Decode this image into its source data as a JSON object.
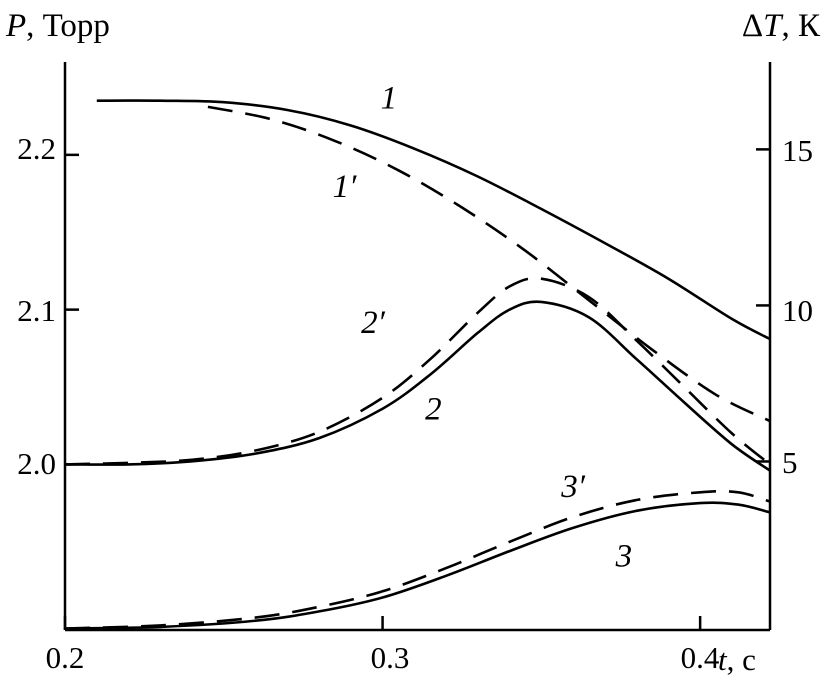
{
  "axes": {
    "left_title": {
      "var": "P",
      "unit": ", Торр"
    },
    "right_title": {
      "delta": "Δ",
      "var": "T",
      "unit": ", К"
    },
    "x_title": {
      "var": "t",
      "unit": ", с"
    },
    "left_ticks": [
      "2.0",
      "2.1",
      "2.2"
    ],
    "right_ticks": [
      "5",
      "10",
      "15"
    ],
    "x_ticks": [
      "0.2",
      "0.3",
      "0.4"
    ]
  },
  "chart_data": {
    "type": "line",
    "title": "",
    "xlabel": "t, с",
    "ylabel_left": "P, Торр",
    "ylabel_right": "ΔT, К",
    "xlim": [
      0.2,
      0.422
    ],
    "ylim_left": [
      1.893,
      2.26
    ],
    "ylim_right": [
      -0.4,
      17.8
    ],
    "x_tick_values": [
      0.2,
      0.3,
      0.4
    ],
    "left_tick_values": [
      2.0,
      2.1,
      2.2
    ],
    "right_tick_values": [
      5,
      10,
      15
    ],
    "grid": false,
    "legend": "inline curve labels",
    "color": "#000000",
    "series": [
      {
        "name": "1",
        "style": "solid",
        "axis": "left",
        "label": "1",
        "label_pos": [
          0.302,
          2.237
        ],
        "t": [
          0.21,
          0.23,
          0.25,
          0.27,
          0.29,
          0.31,
          0.33,
          0.35,
          0.37,
          0.39,
          0.41,
          0.422
        ],
        "P": [
          2.235,
          2.235,
          2.234,
          2.229,
          2.219,
          2.204,
          2.186,
          2.165,
          2.143,
          2.12,
          2.094,
          2.081
        ]
      },
      {
        "name": "1p",
        "style": "dashed",
        "axis": "left",
        "label": "1′",
        "label_pos": [
          0.288,
          2.18
        ],
        "t": [
          0.245,
          0.265,
          0.285,
          0.305,
          0.325,
          0.345,
          0.365,
          0.385,
          0.405,
          0.422
        ],
        "P": [
          2.231,
          2.223,
          2.209,
          2.19,
          2.166,
          2.138,
          2.106,
          2.074,
          2.045,
          2.028
        ]
      },
      {
        "name": "2p",
        "style": "dashed",
        "axis": "left",
        "label": "2′",
        "label_pos": [
          0.297,
          2.092
        ],
        "t": [
          0.2,
          0.22,
          0.24,
          0.26,
          0.28,
          0.3,
          0.315,
          0.33,
          0.34,
          0.35,
          0.365,
          0.38,
          0.395,
          0.41,
          0.422
        ],
        "P": [
          2.0,
          2.001,
          2.003,
          2.009,
          2.021,
          2.043,
          2.068,
          2.098,
          2.115,
          2.12,
          2.108,
          2.08,
          2.05,
          2.02,
          2.0
        ]
      },
      {
        "name": "2",
        "style": "solid",
        "axis": "left",
        "label": "2",
        "label_pos": [
          0.316,
          2.036
        ],
        "t": [
          0.2,
          0.22,
          0.24,
          0.26,
          0.28,
          0.3,
          0.315,
          0.33,
          0.34,
          0.35,
          0.365,
          0.38,
          0.395,
          0.41,
          0.422
        ],
        "P": [
          2.0,
          2.0,
          2.002,
          2.007,
          2.017,
          2.036,
          2.058,
          2.085,
          2.1,
          2.105,
          2.095,
          2.068,
          2.04,
          2.013,
          1.996
        ]
      },
      {
        "name": "3p",
        "style": "dashed",
        "axis": "left",
        "label": "3′",
        "label_pos": [
          0.36,
          1.986
        ],
        "t": [
          0.2,
          0.23,
          0.26,
          0.28,
          0.3,
          0.32,
          0.34,
          0.36,
          0.38,
          0.4,
          0.412,
          0.422
        ],
        "P": [
          1.894,
          1.896,
          1.901,
          1.908,
          1.918,
          1.933,
          1.95,
          1.966,
          1.977,
          1.982,
          1.982,
          1.976
        ]
      },
      {
        "name": "3",
        "style": "solid",
        "axis": "left",
        "label": "3",
        "label_pos": [
          0.376,
          1.941
        ],
        "t": [
          0.2,
          0.23,
          0.26,
          0.28,
          0.3,
          0.32,
          0.34,
          0.36,
          0.38,
          0.4,
          0.412,
          0.422
        ],
        "P": [
          1.894,
          1.895,
          1.899,
          1.905,
          1.914,
          1.928,
          1.944,
          1.959,
          1.97,
          1.975,
          1.974,
          1.969
        ]
      }
    ]
  }
}
